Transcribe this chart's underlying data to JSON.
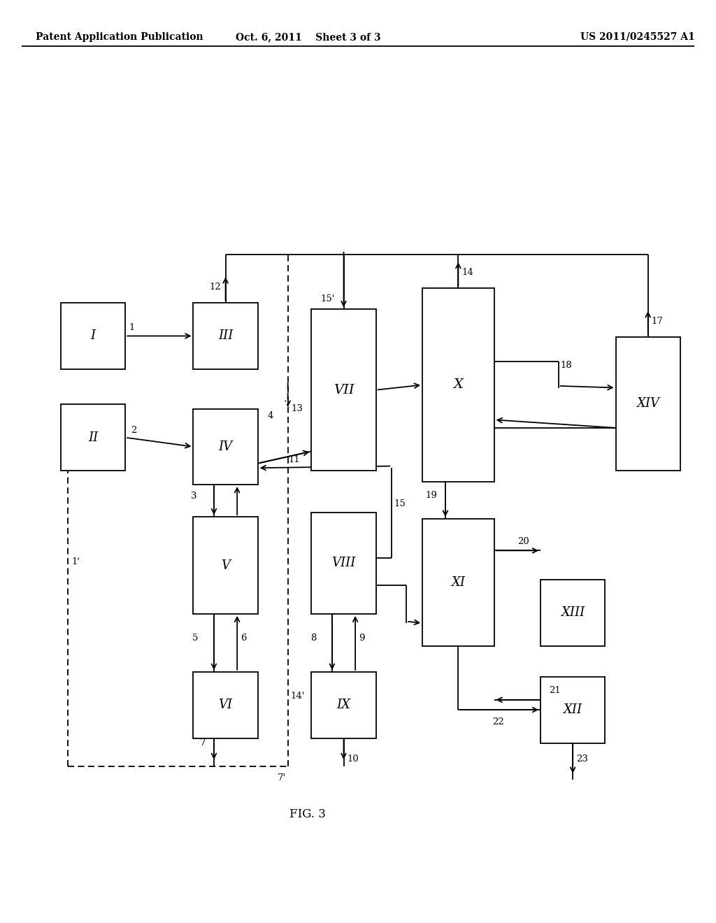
{
  "header_left": "Patent Application Publication",
  "header_mid": "Oct. 6, 2011    Sheet 3 of 3",
  "header_right": "US 2011/0245527 A1",
  "fig_label": "FIG. 3",
  "bg": "#ffffff",
  "boxes": {
    "I": [
      0.085,
      0.6,
      0.09,
      0.072
    ],
    "II": [
      0.085,
      0.49,
      0.09,
      0.072
    ],
    "III": [
      0.27,
      0.6,
      0.09,
      0.072
    ],
    "IV": [
      0.27,
      0.475,
      0.09,
      0.082
    ],
    "V": [
      0.27,
      0.335,
      0.09,
      0.105
    ],
    "VI": [
      0.27,
      0.2,
      0.09,
      0.072
    ],
    "VII": [
      0.435,
      0.49,
      0.09,
      0.175
    ],
    "VIII": [
      0.435,
      0.335,
      0.09,
      0.11
    ],
    "IX": [
      0.435,
      0.2,
      0.09,
      0.072
    ],
    "X": [
      0.59,
      0.478,
      0.1,
      0.21
    ],
    "XI": [
      0.59,
      0.3,
      0.1,
      0.138
    ],
    "XII": [
      0.755,
      0.195,
      0.09,
      0.072
    ],
    "XIII": [
      0.755,
      0.3,
      0.09,
      0.072
    ],
    "XIV": [
      0.86,
      0.49,
      0.09,
      0.145
    ]
  }
}
